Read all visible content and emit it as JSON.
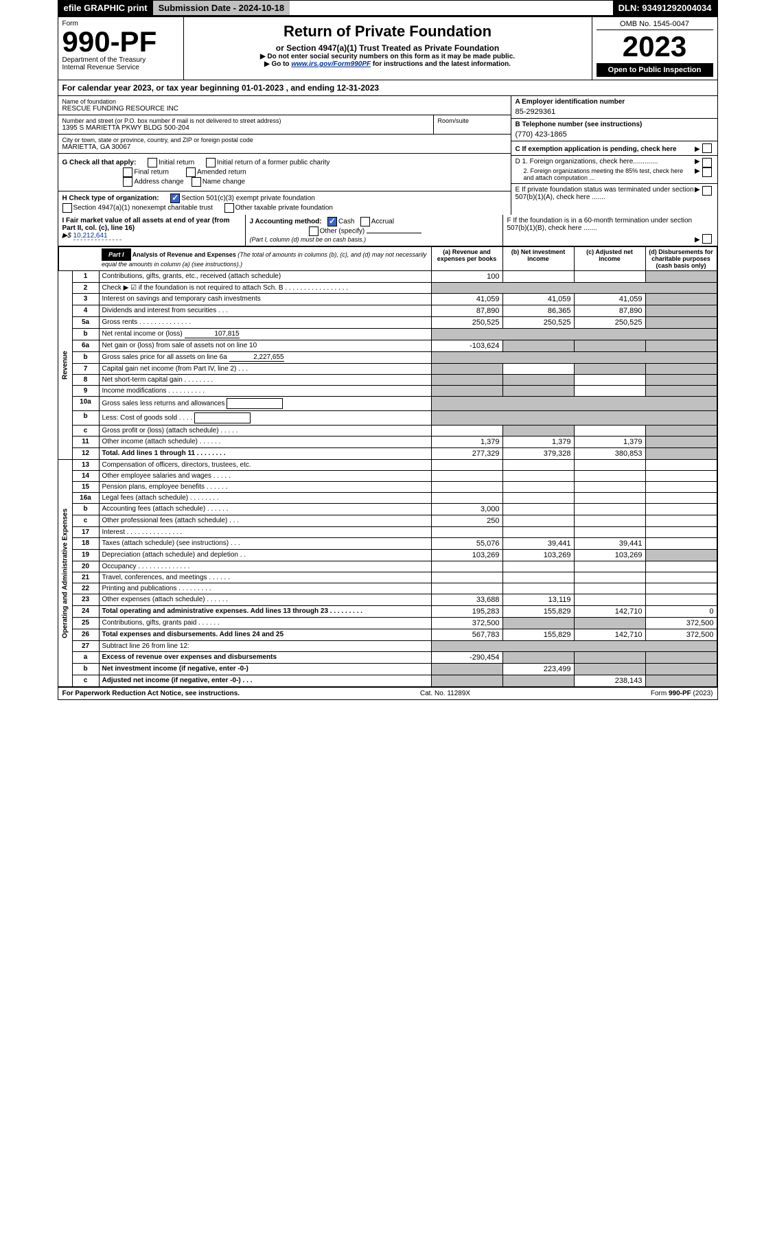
{
  "topbar": {
    "efile": "efile GRAPHIC print",
    "submission": "Submission Date - 2024-10-18",
    "dln": "DLN: 93491292004034"
  },
  "header": {
    "form_word": "Form",
    "form_number": "990-PF",
    "dept": "Department of the Treasury",
    "irs": "Internal Revenue Service",
    "title": "Return of Private Foundation",
    "subtitle": "or Section 4947(a)(1) Trust Treated as Private Foundation",
    "warn": "▶ Do not enter social security numbers on this form as it may be made public.",
    "goto": "▶ Go to ",
    "goto_link": "www.irs.gov/Form990PF",
    "goto_tail": " for instructions and the latest information.",
    "omb": "OMB No. 1545-0047",
    "year": "2023",
    "open": "Open to Public Inspection"
  },
  "calyear": "For calendar year 2023, or tax year beginning 01-01-2023          , and ending 12-31-2023",
  "name_lbl": "Name of foundation",
  "name": "RESCUE FUNDING RESOURCE INC",
  "addr_lbl": "Number and street (or P.O. box number if mail is not delivered to street address)",
  "addr": "1395 S MARIETTA PKWY BLDG 500-204",
  "room_lbl": "Room/suite",
  "city_lbl": "City or town, state or province, country, and ZIP or foreign postal code",
  "city": "MARIETTA, GA  30067",
  "ein_lbl": "A Employer identification number",
  "ein": "85-2929361",
  "phone_lbl": "B Telephone number (see instructions)",
  "phone": "(770) 423-1865",
  "c_lbl": "C If exemption application is pending, check here",
  "g_lbl": "G Check all that apply:",
  "g": {
    "initial": "Initial return",
    "initial_former": "Initial return of a former public charity",
    "final": "Final return",
    "amended": "Amended return",
    "addr_change": "Address change",
    "name_change": "Name change"
  },
  "d1": "D 1. Foreign organizations, check here.............",
  "d2": "2. Foreign organizations meeting the 85% test, check here and attach computation ...",
  "e": "E If private foundation status was terminated under section 507(b)(1)(A), check here .......",
  "h_lbl": "H Check type of organization:",
  "h": {
    "s501": "Section 501(c)(3) exempt private foundation",
    "s4947": "Section 4947(a)(1) nonexempt charitable trust",
    "other": "Other taxable private foundation"
  },
  "i_lbl": "I Fair market value of all assets at end of year (from Part II, col. (c), line 16)",
  "i_val": "10,212,641",
  "j_lbl": "J Accounting method:",
  "j_cash": "Cash",
  "j_accrual": "Accrual",
  "j_other": "Other (specify)",
  "j_note": "(Part I, column (d) must be on cash basis.)",
  "f": "F If the foundation is in a 60-month termination under section 507(b)(1)(B), check here .......",
  "part1": {
    "label": "Part I",
    "title": "Analysis of Revenue and Expenses",
    "desc": "(The total of amounts in columns (b), (c), and (d) may not necessarily equal the amounts in column (a) (see instructions).)",
    "cols": {
      "a": "(a) Revenue and expenses per books",
      "b": "(b) Net investment income",
      "c": "(c) Adjusted net income",
      "d": "(d) Disbursements for charitable purposes (cash basis only)"
    }
  },
  "sidebar": {
    "rev": "Revenue",
    "exp": "Operating and Administrative Expenses"
  },
  "lines": [
    {
      "no": "1",
      "label": "Contributions, gifts, grants, etc., received (attach schedule)",
      "a": "100",
      "b": "",
      "c": "",
      "d": "",
      "d_shade": true
    },
    {
      "no": "2",
      "label": "Check ▶ ☑ if the foundation is not required to attach Sch. B   .  .  .  .  .  .  .  .  .  .  .  .  .  .  .  .  .",
      "shade_all": true
    },
    {
      "no": "3",
      "label": "Interest on savings and temporary cash investments",
      "a": "41,059",
      "b": "41,059",
      "c": "41,059",
      "d": "",
      "d_shade": true
    },
    {
      "no": "4",
      "label": "Dividends and interest from securities   .  .  .",
      "a": "87,890",
      "b": "86,365",
      "c": "87,890",
      "d": "",
      "d_shade": true
    },
    {
      "no": "5a",
      "label": "Gross rents   .  .  .  .  .  .  .  .  .  .  .  .  .  .",
      "a": "250,525",
      "b": "250,525",
      "c": "250,525",
      "d": "",
      "d_shade": true
    },
    {
      "no": "b",
      "label": "Net rental income or (loss)",
      "inline": "107,815",
      "shade_all": true
    },
    {
      "no": "6a",
      "label": "Net gain or (loss) from sale of assets not on line 10",
      "a": "-103,624",
      "b": "",
      "c": "",
      "d": "",
      "b_shade": true,
      "c_shade": true,
      "d_shade": true
    },
    {
      "no": "b",
      "label": "Gross sales price for all assets on line 6a",
      "inline": "2,227,655",
      "shade_all": true
    },
    {
      "no": "7",
      "label": "Capital gain net income (from Part IV, line 2)   .  .  .",
      "a": "",
      "b": "",
      "c": "",
      "d": "",
      "a_shade": true,
      "c_shade": true,
      "d_shade": true
    },
    {
      "no": "8",
      "label": "Net short-term capital gain   .  .  .  .  .  .  .  .",
      "a": "",
      "b": "",
      "c": "",
      "d": "",
      "a_shade": true,
      "b_shade": true,
      "d_shade": true
    },
    {
      "no": "9",
      "label": "Income modifications   .  .  .  .  .  .  .  .  .  .",
      "a": "",
      "b": "",
      "c": "",
      "d": "",
      "a_shade": true,
      "b_shade": true,
      "d_shade": true
    },
    {
      "no": "10a",
      "label": "Gross sales less returns and allowances",
      "box": true,
      "shade_all": true
    },
    {
      "no": "b",
      "label": "Less: Cost of goods sold   .  .  .  .",
      "box": true,
      "shade_all": true
    },
    {
      "no": "c",
      "label": "Gross profit or (loss) (attach schedule)   .  .  .  .  .",
      "a": "",
      "b": "",
      "c": "",
      "d": "",
      "b_shade": true,
      "d_shade": true
    },
    {
      "no": "11",
      "label": "Other income (attach schedule)   .  .  .  .  .  .",
      "a": "1,379",
      "b": "1,379",
      "c": "1,379",
      "d": "",
      "d_shade": true
    },
    {
      "no": "12",
      "label": "Total. Add lines 1 through 11   .  .  .  .  .  .  .  .",
      "a": "277,329",
      "b": "379,328",
      "c": "380,853",
      "d": "",
      "d_shade": true,
      "bold": true
    },
    {
      "no": "13",
      "label": "Compensation of officers, directors, trustees, etc.",
      "a": "",
      "b": "",
      "c": "",
      "d": ""
    },
    {
      "no": "14",
      "label": "Other employee salaries and wages   .  .  .  .  .",
      "a": "",
      "b": "",
      "c": "",
      "d": ""
    },
    {
      "no": "15",
      "label": "Pension plans, employee benefits   .  .  .  .  .  .",
      "a": "",
      "b": "",
      "c": "",
      "d": ""
    },
    {
      "no": "16a",
      "label": "Legal fees (attach schedule)   .  .  .  .  .  .  .  .",
      "a": "",
      "b": "",
      "c": "",
      "d": ""
    },
    {
      "no": "b",
      "label": "Accounting fees (attach schedule)   .  .  .  .  .  .",
      "a": "3,000",
      "b": "",
      "c": "",
      "d": ""
    },
    {
      "no": "c",
      "label": "Other professional fees (attach schedule)   .  .  .",
      "a": "250",
      "b": "",
      "c": "",
      "d": ""
    },
    {
      "no": "17",
      "label": "Interest   .  .  .  .  .  .  .  .  .  .  .  .  .  .  .",
      "a": "",
      "b": "",
      "c": "",
      "d": ""
    },
    {
      "no": "18",
      "label": "Taxes (attach schedule) (see instructions)   .  .  .",
      "a": "55,076",
      "b": "39,441",
      "c": "39,441",
      "d": ""
    },
    {
      "no": "19",
      "label": "Depreciation (attach schedule) and depletion   .  .",
      "a": "103,269",
      "b": "103,269",
      "c": "103,269",
      "d": "",
      "d_shade": true
    },
    {
      "no": "20",
      "label": "Occupancy   .  .  .  .  .  .  .  .  .  .  .  .  .  .",
      "a": "",
      "b": "",
      "c": "",
      "d": ""
    },
    {
      "no": "21",
      "label": "Travel, conferences, and meetings   .  .  .  .  .  .",
      "a": "",
      "b": "",
      "c": "",
      "d": ""
    },
    {
      "no": "22",
      "label": "Printing and publications   .  .  .  .  .  .  .  .  .",
      "a": "",
      "b": "",
      "c": "",
      "d": ""
    },
    {
      "no": "23",
      "label": "Other expenses (attach schedule)   .  .  .  .  .  .",
      "a": "33,688",
      "b": "13,119",
      "c": "",
      "d": ""
    },
    {
      "no": "24",
      "label": "Total operating and administrative expenses. Add lines 13 through 23   .  .  .  .  .  .  .  .  .",
      "a": "195,283",
      "b": "155,829",
      "c": "142,710",
      "d": "0",
      "bold": true
    },
    {
      "no": "25",
      "label": "Contributions, gifts, grants paid   .  .  .  .  .  .",
      "a": "372,500",
      "b": "",
      "c": "",
      "d": "372,500",
      "b_shade": true,
      "c_shade": true
    },
    {
      "no": "26",
      "label": "Total expenses and disbursements. Add lines 24 and 25",
      "a": "567,783",
      "b": "155,829",
      "c": "142,710",
      "d": "372,500",
      "bold": true
    },
    {
      "no": "27",
      "label": "Subtract line 26 from line 12:",
      "shade_all": true
    },
    {
      "no": "a",
      "label": "Excess of revenue over expenses and disbursements",
      "a": "-290,454",
      "b": "",
      "c": "",
      "d": "",
      "b_shade": true,
      "c_shade": true,
      "d_shade": true,
      "bold": true
    },
    {
      "no": "b",
      "label": "Net investment income (if negative, enter -0-)",
      "a": "",
      "b": "223,499",
      "c": "",
      "d": "",
      "a_shade": true,
      "c_shade": true,
      "d_shade": true,
      "bold": true
    },
    {
      "no": "c",
      "label": "Adjusted net income (if negative, enter -0-)   .  .  .",
      "a": "",
      "b": "",
      "c": "238,143",
      "d": "",
      "a_shade": true,
      "b_shade": true,
      "d_shade": true,
      "bold": true
    }
  ],
  "footer": {
    "left": "For Paperwork Reduction Act Notice, see instructions.",
    "mid": "Cat. No. 11289X",
    "right": "Form 990-PF (2023)"
  }
}
